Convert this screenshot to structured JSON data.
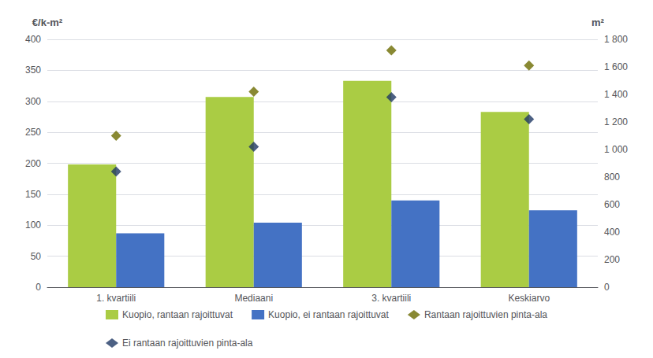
{
  "chart_data": {
    "type": "bar",
    "categories": [
      "1. kvartiili",
      "Mediaani",
      "3. kvartiili",
      "Keskiarvo"
    ],
    "series": [
      {
        "name": "Kuopio, rantaan rajoittuvat",
        "type": "bar",
        "color": "#AACC44",
        "values": [
          198,
          307,
          333,
          283
        ]
      },
      {
        "name": "Kuopio, ei rantaan rajoittuvat",
        "type": "bar",
        "color": "#4472C4",
        "values": [
          87,
          104,
          140,
          124
        ]
      },
      {
        "name": "Rantaan rajoittuvien pinta-ala",
        "type": "scatter",
        "marker": "diamond",
        "axis": "y2",
        "color": "#6B6B00",
        "values": [
          1100,
          1420,
          1720,
          1610
        ]
      },
      {
        "name": "Ei rantaan rajoittuvien pinta-ala",
        "type": "scatter",
        "marker": "diamond",
        "axis": "y2",
        "color": "#1F3864",
        "values": [
          840,
          1020,
          1380,
          1220
        ]
      }
    ],
    "ylabel": "€/k-m²",
    "y2label": "m²",
    "ylim": [
      0,
      400
    ],
    "yticks": [
      0,
      50,
      100,
      150,
      200,
      250,
      300,
      350,
      400
    ],
    "y2lim": [
      0,
      1800
    ],
    "y2ticks": [
      0,
      200,
      400,
      600,
      800,
      {
        "value": 1000,
        "label": "1 000"
      },
      {
        "value": 1200,
        "label": "1 200"
      },
      {
        "value": 1400,
        "label": "1 400"
      },
      {
        "value": 1600,
        "label": "1 600"
      },
      {
        "value": 1800,
        "label": "1 800"
      }
    ],
    "grid": true,
    "legend": "bottom"
  }
}
